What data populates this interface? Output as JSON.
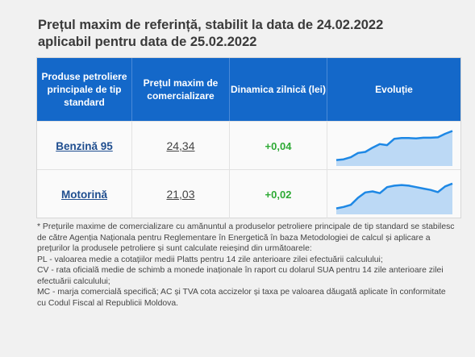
{
  "title": {
    "line1": "Prețul maxim de referință, stabilit la data de 24.02.2022",
    "line2": "aplicabil pentru data de 25.02.2022"
  },
  "table": {
    "headers": {
      "product": "Produse petroliere principale de tip standard",
      "price": "Prețul maxim de comercializare",
      "dynamics": "Dinamica zilnică (lei)",
      "evolution": "Evoluție"
    },
    "rows": [
      {
        "product": "Benzină 95",
        "price": "24,34",
        "delta": "+0,04",
        "trend": [
          0.1,
          0.12,
          0.18,
          0.3,
          0.33,
          0.45,
          0.55,
          0.52,
          0.7,
          0.72,
          0.72,
          0.71,
          0.73,
          0.73,
          0.74,
          0.84,
          0.92
        ]
      },
      {
        "product": "Motorină",
        "price": "21,03",
        "delta": "+0,02",
        "trend": [
          0.1,
          0.14,
          0.2,
          0.4,
          0.55,
          0.58,
          0.53,
          0.7,
          0.74,
          0.76,
          0.74,
          0.7,
          0.66,
          0.62,
          0.56,
          0.72,
          0.8
        ]
      }
    ]
  },
  "colors": {
    "header_bg": "#1468c9",
    "link": "#1f4e8f",
    "positive": "#2eaa35",
    "trend_line": "#1e88e5",
    "trend_fill": "#bcd9f5"
  },
  "footnote": [
    "* Prețurile maxime de comercializare cu amănuntul a produselor petroliere principale de tip standard se stabilesc de către Agenția Naționala pentru Reglementare în Energetică în baza Metodologiei de calcul și aplicare a prețurilor la produsele petroliere și sunt calculate reieșind din următoarele:",
    "PL - valoarea medie a cotațiilor medii Platts pentru 14 zile anterioare zilei efectuării calculului;",
    "CV - rata oficială medie de schimb a monede inaționale în raport cu dolarul SUA pentru 14 zile anterioare zilei efectuării calculului;",
    "MC - marja comercială specifică; AC și TVA cota accizelor și taxa pe valoarea dăugată aplicate în conformitate cu Codul Fiscal al Republicii Moldova."
  ]
}
